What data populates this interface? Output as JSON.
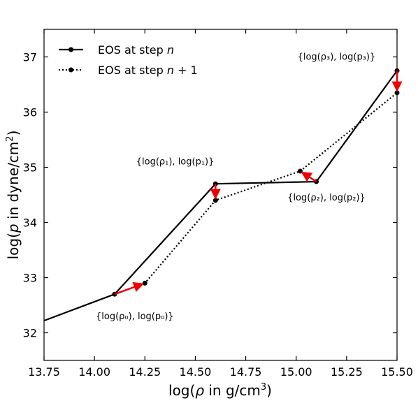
{
  "chart_data": {
    "type": "line",
    "xlabel": "log(ρ in g/cm³)",
    "ylabel": "log(p in dyne/cm²)",
    "xlim": [
      13.75,
      15.5
    ],
    "ylim": [
      31.5,
      37.5
    ],
    "xticks": [
      13.75,
      14.0,
      14.25,
      14.5,
      14.75,
      15.0,
      15.25,
      15.5
    ],
    "xtick_labels": [
      "13.75",
      "14.00",
      "14.25",
      "14.50",
      "14.75",
      "15.00",
      "15.25",
      "15.50"
    ],
    "yticks": [
      32,
      33,
      34,
      35,
      36,
      37
    ],
    "ytick_labels": [
      "32",
      "33",
      "34",
      "35",
      "36",
      "37"
    ],
    "legend_position": "top-left",
    "series": [
      {
        "name": "EOS at step n",
        "style": "solid",
        "color": "#000000",
        "x": [
          13.75,
          14.1,
          14.6,
          15.1,
          15.5
        ],
        "y": [
          32.22,
          32.7,
          34.7,
          34.74,
          36.75
        ],
        "markers": [
          false,
          true,
          true,
          true,
          true
        ]
      },
      {
        "name": "EOS at step n+1",
        "style": "dotted",
        "color": "#000000",
        "x": [
          14.1,
          14.25,
          14.6,
          15.02,
          15.5
        ],
        "y": [
          32.7,
          32.9,
          34.4,
          34.93,
          36.35
        ],
        "markers": [
          false,
          true,
          true,
          true,
          true
        ]
      }
    ],
    "arrows": [
      {
        "from": [
          14.1,
          32.7
        ],
        "to": [
          14.25,
          32.9
        ],
        "color": "#ee0000"
      },
      {
        "from": [
          14.6,
          34.7
        ],
        "to": [
          14.6,
          34.4
        ],
        "color": "#ee0000"
      },
      {
        "from": [
          15.1,
          34.74
        ],
        "to": [
          15.02,
          34.93
        ],
        "color": "#ee0000"
      },
      {
        "from": [
          15.5,
          36.75
        ],
        "to": [
          15.5,
          36.35
        ],
        "color": "#ee0000"
      }
    ],
    "annotations": [
      {
        "text": "{log(ρ₀), log(p₀)}",
        "x": 14.2,
        "y": 32.25
      },
      {
        "text": "{log(ρ₁), log(p₁)}",
        "x": 14.4,
        "y": 35.05
      },
      {
        "text": "{log(ρ₂), log(p₂)}",
        "x": 15.15,
        "y": 34.4
      },
      {
        "text": "{log(ρ₃), log(p₃)}",
        "x": 15.2,
        "y": 36.95
      }
    ]
  }
}
